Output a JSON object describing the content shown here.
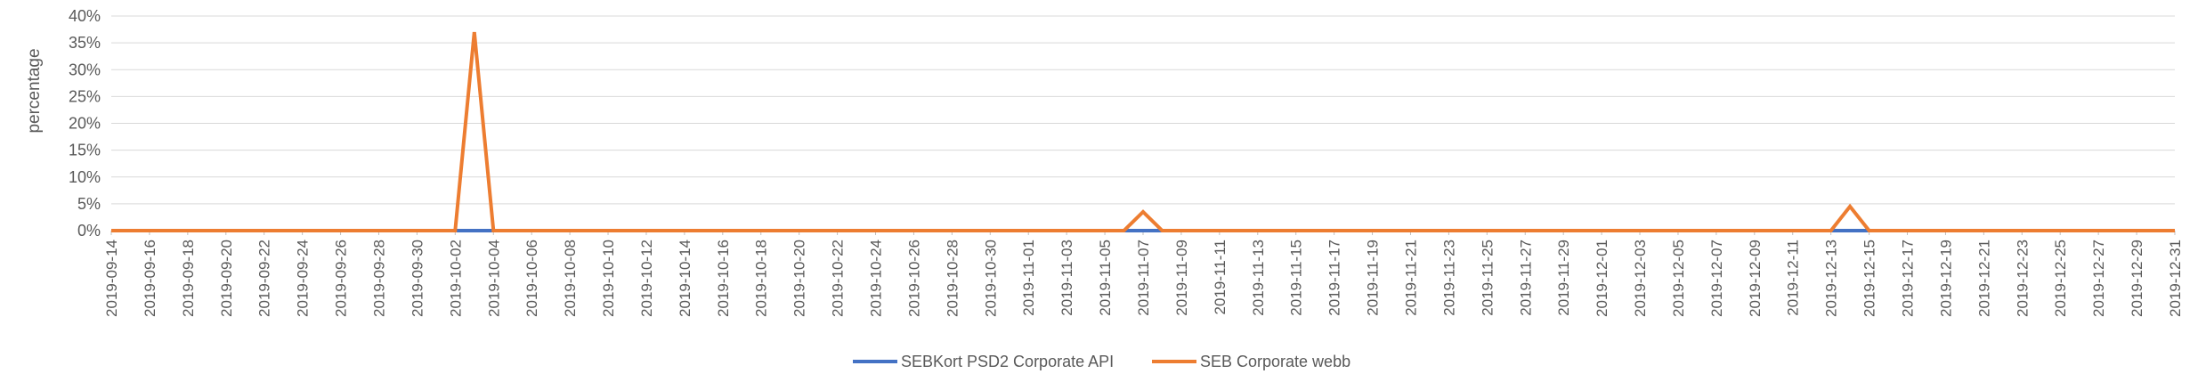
{
  "chart_data": {
    "type": "line",
    "title": "",
    "xlabel": "",
    "ylabel": "percentage",
    "ylim": [
      0,
      40
    ],
    "yticks": [
      "0%",
      "5%",
      "10%",
      "15%",
      "20%",
      "25%",
      "30%",
      "35%",
      "40%"
    ],
    "grid": true,
    "legend_position": "bottom",
    "x_start": "2019-09-14",
    "x_end": "2019-12-31",
    "x_tick_labels": [
      "2019-09-14",
      "2019-09-16",
      "2019-09-18",
      "2019-09-20",
      "2019-09-22",
      "2019-09-24",
      "2019-09-26",
      "2019-09-28",
      "2019-09-30",
      "2019-10-02",
      "2019-10-04",
      "2019-10-06",
      "2019-10-08",
      "2019-10-10",
      "2019-10-12",
      "2019-10-14",
      "2019-10-16",
      "2019-10-18",
      "2019-10-20",
      "2019-10-22",
      "2019-10-24",
      "2019-10-26",
      "2019-10-28",
      "2019-10-30",
      "2019-11-01",
      "2019-11-03",
      "2019-11-05",
      "2019-11-07",
      "2019-11-09",
      "2019-11-11",
      "2019-11-13",
      "2019-11-15",
      "2019-11-17",
      "2019-11-19",
      "2019-11-21",
      "2019-11-23",
      "2019-11-25",
      "2019-11-27",
      "2019-11-29",
      "2019-12-01",
      "2019-12-03",
      "2019-12-05",
      "2019-12-07",
      "2019-12-09",
      "2019-12-11",
      "2019-12-13",
      "2019-12-15",
      "2019-12-17",
      "2019-12-19",
      "2019-12-21",
      "2019-12-23",
      "2019-12-25",
      "2019-12-27",
      "2019-12-29",
      "2019-12-31"
    ],
    "series": [
      {
        "name": "SEBKort PSD2 Corporate API",
        "color": "#4472C4",
        "points": [
          {
            "x": "2019-09-14",
            "y": 0
          },
          {
            "x": "2019-12-31",
            "y": 0
          }
        ]
      },
      {
        "name": "SEB Corporate webb",
        "color": "#ED7D31",
        "points": [
          {
            "x": "2019-09-14",
            "y": 0
          },
          {
            "x": "2019-10-02",
            "y": 0
          },
          {
            "x": "2019-10-03",
            "y": 37
          },
          {
            "x": "2019-10-04",
            "y": 0
          },
          {
            "x": "2019-11-06",
            "y": 0
          },
          {
            "x": "2019-11-07",
            "y": 3.5
          },
          {
            "x": "2019-11-08",
            "y": 0
          },
          {
            "x": "2019-12-13",
            "y": 0
          },
          {
            "x": "2019-12-14",
            "y": 4.5
          },
          {
            "x": "2019-12-15",
            "y": 0
          },
          {
            "x": "2019-12-31",
            "y": 0
          }
        ]
      }
    ]
  }
}
